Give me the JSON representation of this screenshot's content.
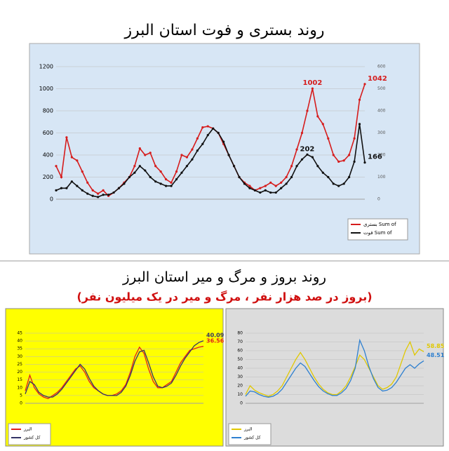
{
  "chart_data": [
    {
      "type": "line",
      "title": "روند بستری و فوت استان البرز",
      "ylim": [
        0,
        1200
      ],
      "yticks": [
        0,
        200,
        400,
        600,
        800,
        1000,
        1200
      ],
      "y2lim": [
        0,
        600
      ],
      "y2ticks": [
        0,
        100,
        200,
        300,
        400,
        500,
        600
      ],
      "categories": [
        null,
        null,
        null,
        null,
        null,
        null,
        null,
        null,
        null,
        null,
        null,
        null,
        null,
        null,
        null,
        null,
        null,
        null,
        null,
        null,
        null,
        null,
        null,
        null,
        null,
        null,
        null,
        null,
        null,
        null,
        null,
        null,
        null,
        null,
        null,
        null,
        null,
        null,
        null,
        null,
        null,
        null,
        null,
        null,
        null,
        null,
        null,
        null,
        null,
        null,
        null,
        null,
        null,
        null,
        null,
        null,
        null,
        null,
        null,
        null
      ],
      "series": [
        {
          "name": "بستری Sum of",
          "color": "#d61c1c",
          "values": [
            300,
            200,
            560,
            380,
            350,
            250,
            150,
            80,
            50,
            80,
            30,
            60,
            100,
            150,
            200,
            300,
            460,
            400,
            420,
            300,
            250,
            180,
            150,
            250,
            400,
            380,
            450,
            550,
            650,
            660,
            640,
            600,
            500,
            400,
            300,
            200,
            150,
            120,
            80,
            100,
            120,
            150,
            120,
            150,
            200,
            300,
            450,
            600,
            800,
            1002,
            750,
            680,
            550,
            400,
            340,
            350,
            400,
            550,
            900,
            1042
          ]
        },
        {
          "name": "فوت Sum of",
          "color": "#111111",
          "axis": "y2",
          "values": [
            40,
            50,
            50,
            80,
            60,
            40,
            25,
            15,
            10,
            20,
            20,
            30,
            50,
            70,
            100,
            120,
            150,
            130,
            100,
            80,
            70,
            60,
            60,
            90,
            120,
            150,
            180,
            220,
            250,
            290,
            320,
            300,
            260,
            200,
            150,
            100,
            70,
            50,
            40,
            30,
            40,
            30,
            30,
            50,
            70,
            100,
            150,
            180,
            202,
            190,
            150,
            120,
            100,
            70,
            60,
            70,
            100,
            170,
            340,
            166
          ]
        }
      ]
    },
    {
      "type": "line",
      "title": "روند بروز و مرگ و میر استان البرز",
      "subtitle": "(بروز در صد هزار نفر ، مرگ و میر در یک میلیون نفر)",
      "background": "#ffff00",
      "ylim": [
        0,
        45
      ],
      "yticks": [
        0,
        5,
        10,
        15,
        20,
        25,
        30,
        35,
        40,
        45
      ],
      "categories": [
        null,
        null,
        null,
        null,
        null,
        null,
        null,
        null,
        null,
        null,
        null,
        null,
        null,
        null,
        null,
        null,
        null,
        null,
        null,
        null,
        null,
        null,
        null,
        null,
        null,
        null,
        null,
        null,
        null,
        null,
        null,
        null,
        null,
        null,
        null,
        null,
        null,
        null,
        null,
        null
      ],
      "series": [
        {
          "name": "البرز",
          "color": "#e0201c",
          "values": [
            8,
            18,
            10,
            6,
            4,
            3,
            5,
            7,
            10,
            14,
            18,
            22,
            24,
            20,
            14,
            10,
            8,
            6,
            5,
            5,
            6,
            8,
            12,
            20,
            30,
            36,
            32,
            22,
            14,
            10,
            10,
            12,
            14,
            20,
            26,
            30,
            34,
            35,
            36,
            36.56
          ]
        },
        {
          "name": "کل کشور",
          "color": "#333366",
          "values": [
            6,
            14,
            12,
            7,
            5,
            4,
            4,
            6,
            9,
            13,
            17,
            21,
            25,
            22,
            16,
            11,
            8,
            6,
            5,
            5,
            5,
            7,
            11,
            18,
            27,
            33,
            34,
            26,
            17,
            11,
            10,
            11,
            13,
            18,
            24,
            29,
            33,
            37,
            39,
            40.09
          ]
        }
      ]
    },
    {
      "type": "line",
      "background": "#dcdcdc",
      "ylim": [
        0,
        80
      ],
      "yticks": [
        0,
        10,
        20,
        30,
        40,
        50,
        60,
        70,
        80
      ],
      "categories": [
        null,
        null,
        null,
        null,
        null,
        null,
        null,
        null,
        null,
        null,
        null,
        null,
        null,
        null,
        null,
        null,
        null,
        null,
        null,
        null,
        null,
        null,
        null,
        null,
        null,
        null,
        null,
        null,
        null,
        null,
        null,
        null,
        null,
        null,
        null,
        null,
        null,
        null,
        null,
        null
      ],
      "series": [
        {
          "name": "البرز",
          "color": "#e0c800",
          "values": [
            10,
            20,
            15,
            12,
            10,
            8,
            10,
            14,
            20,
            30,
            40,
            50,
            58,
            50,
            40,
            30,
            22,
            16,
            12,
            10,
            10,
            14,
            20,
            30,
            42,
            55,
            50,
            40,
            30,
            20,
            16,
            18,
            22,
            30,
            45,
            60,
            70,
            55,
            62,
            58.85
          ]
        },
        {
          "name": "کل کشور",
          "color": "#2f80d0",
          "values": [
            8,
            14,
            13,
            10,
            8,
            7,
            8,
            11,
            16,
            24,
            32,
            40,
            46,
            42,
            34,
            26,
            19,
            14,
            11,
            9,
            9,
            12,
            17,
            26,
            40,
            72,
            60,
            42,
            28,
            18,
            14,
            15,
            18,
            24,
            32,
            40,
            44,
            40,
            45,
            48.51
          ]
        }
      ]
    }
  ]
}
